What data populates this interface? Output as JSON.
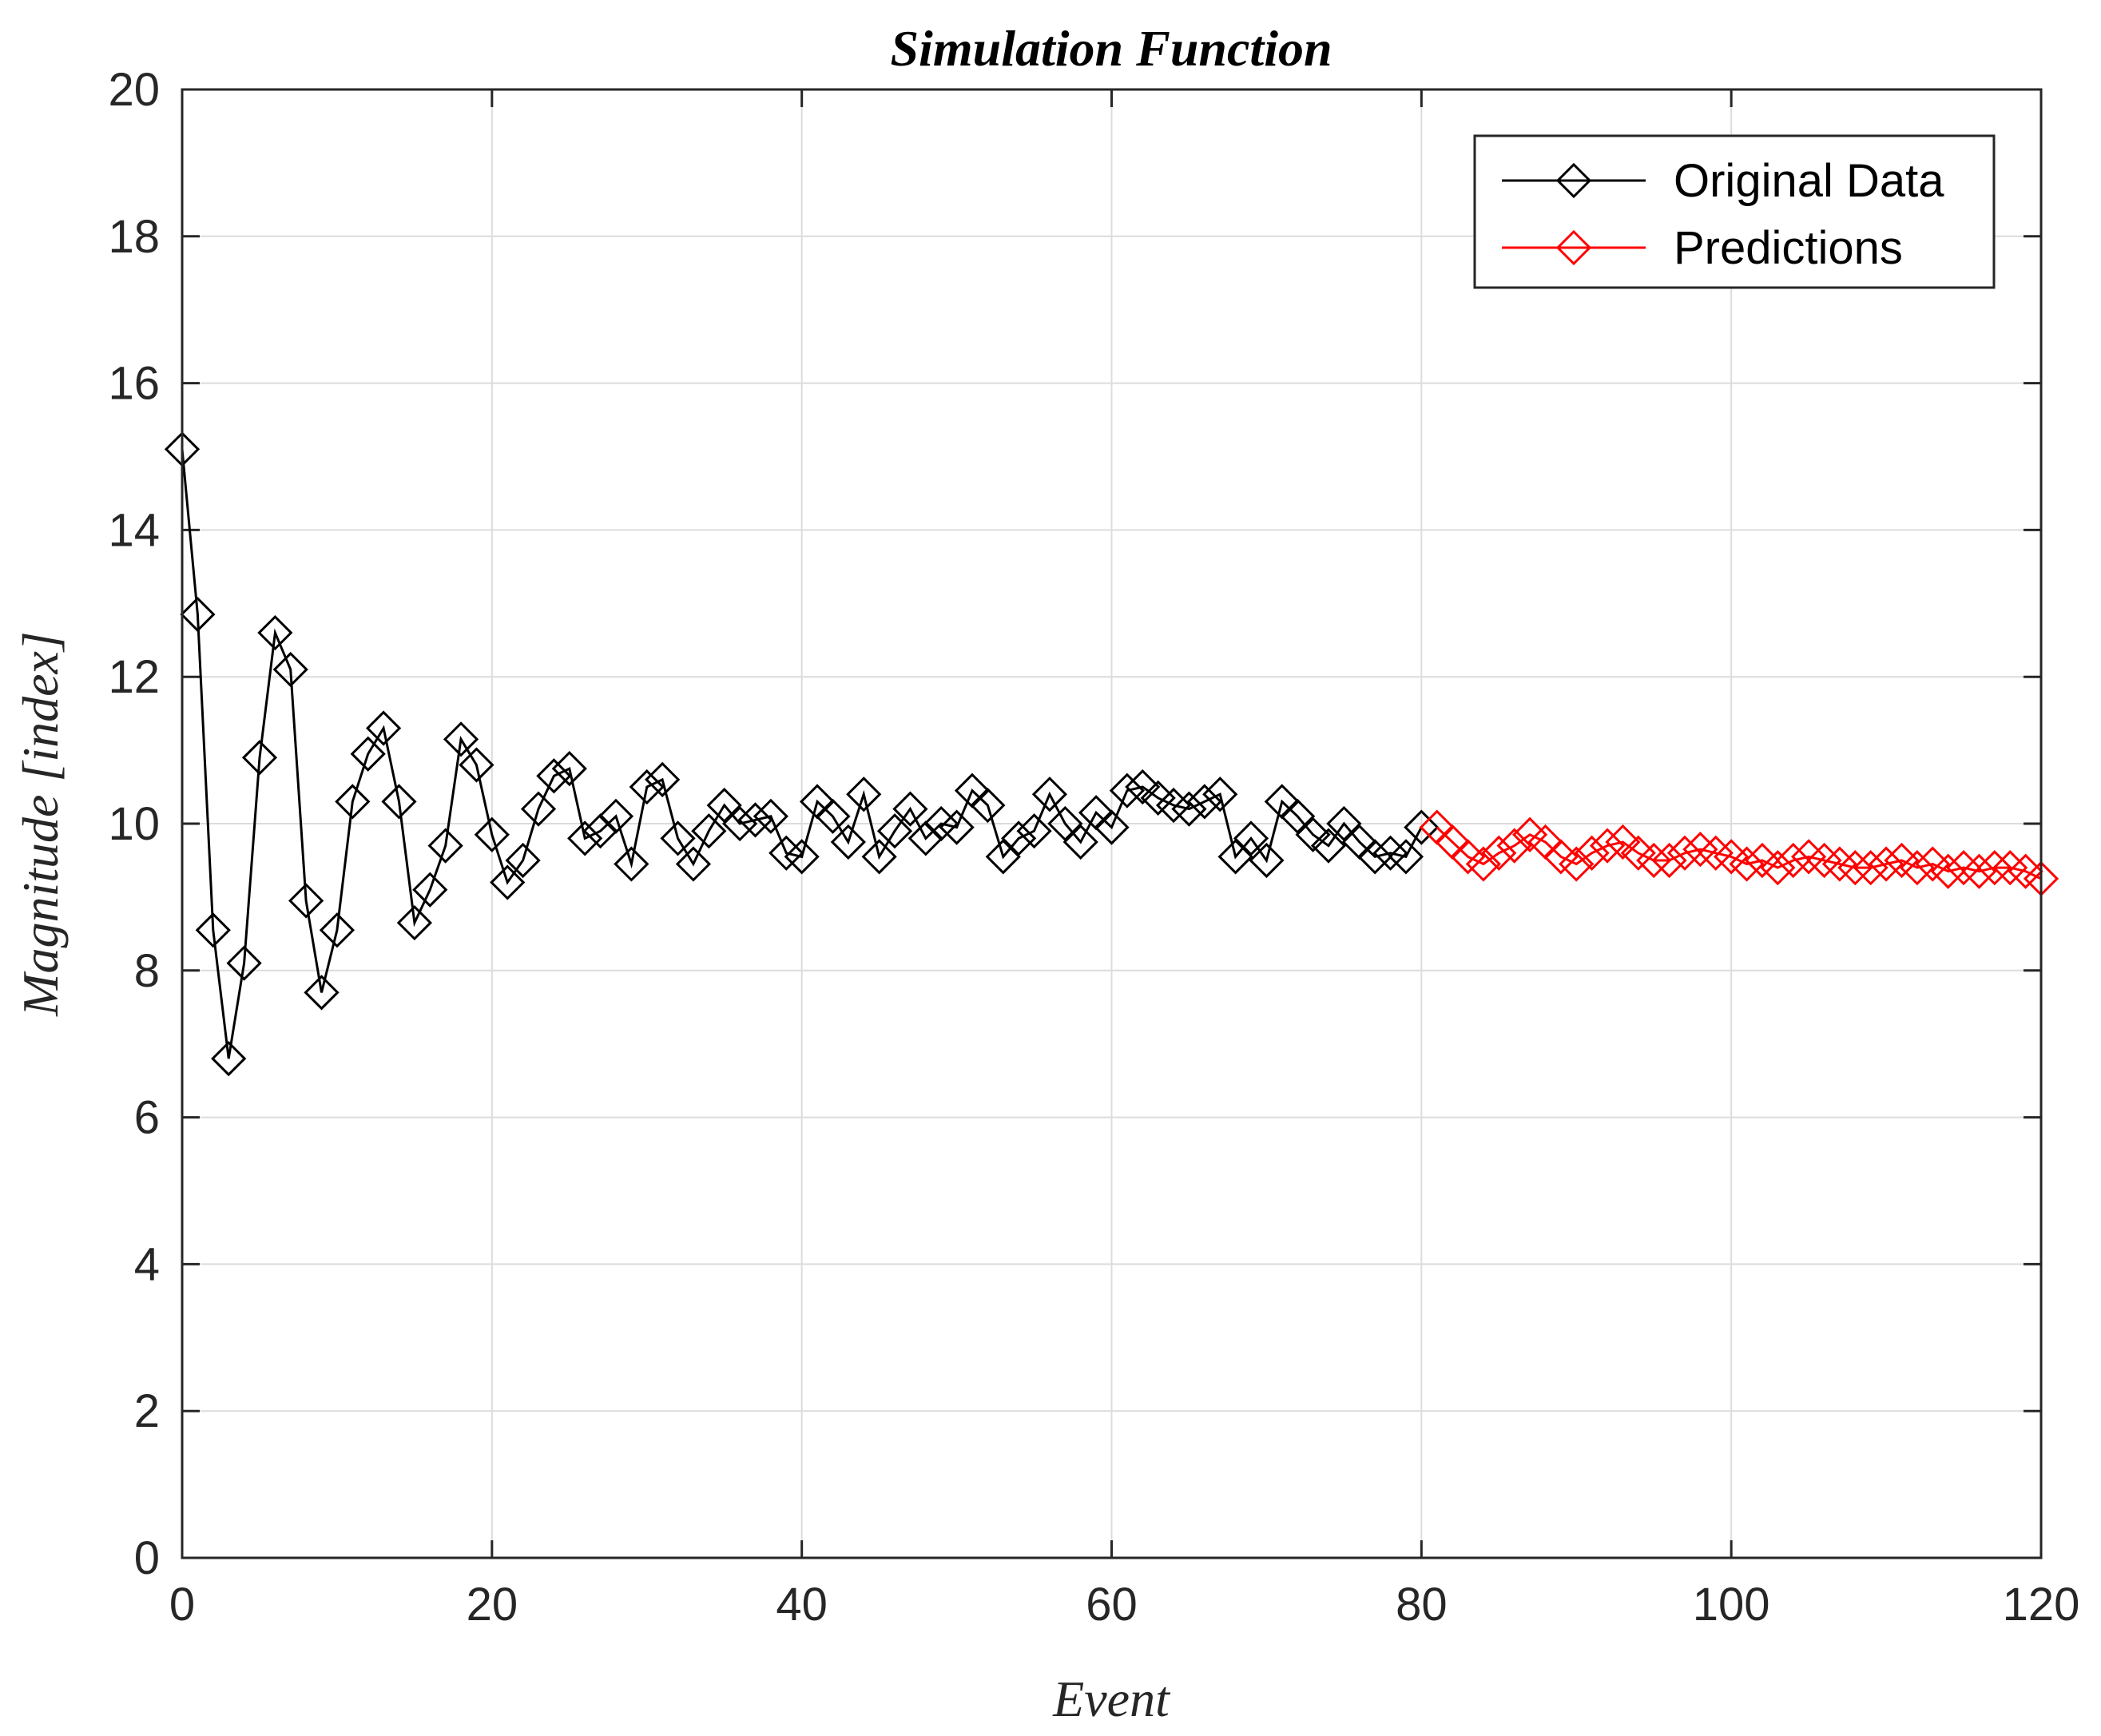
{
  "chart_data": {
    "type": "line",
    "title": "Simulation Function",
    "xlabel": "Event",
    "ylabel": "Magnitude [index]",
    "xlim": [
      0,
      120
    ],
    "ylim": [
      0,
      20
    ],
    "xticks": [
      0,
      20,
      40,
      60,
      80,
      100,
      120
    ],
    "yticks": [
      0,
      2,
      4,
      6,
      8,
      10,
      12,
      14,
      16,
      18,
      20
    ],
    "grid": true,
    "legend_position": "top-right",
    "series": [
      {
        "name": "Original Data",
        "color": "#000000",
        "marker": "diamond",
        "x": [
          0,
          1,
          2,
          3,
          4,
          5,
          6,
          7,
          8,
          9,
          10,
          11,
          12,
          13,
          14,
          15,
          16,
          17,
          18,
          19,
          20,
          21,
          22,
          23,
          24,
          25,
          26,
          27,
          28,
          29,
          30,
          31,
          32,
          33,
          34,
          35,
          36,
          37,
          38,
          39,
          40,
          41,
          42,
          43,
          44,
          45,
          46,
          47,
          48,
          49,
          50,
          51,
          52,
          53,
          54,
          55,
          56,
          57,
          58,
          59,
          60,
          61,
          62,
          63,
          64,
          65,
          66,
          67,
          68,
          69,
          70,
          71,
          72,
          73,
          74,
          75,
          76,
          77,
          78,
          79,
          80
        ],
        "values": [
          15.1,
          12.85,
          8.55,
          6.8,
          8.1,
          10.9,
          12.6,
          12.1,
          8.95,
          7.7,
          8.55,
          10.3,
          10.95,
          11.3,
          10.3,
          8.65,
          9.1,
          9.7,
          11.15,
          10.8,
          9.85,
          9.2,
          9.5,
          10.2,
          10.65,
          10.75,
          9.8,
          9.9,
          10.1,
          9.45,
          10.5,
          10.6,
          9.8,
          9.45,
          9.9,
          10.25,
          10.0,
          10.05,
          10.1,
          9.6,
          9.55,
          10.3,
          10.1,
          9.75,
          10.4,
          9.55,
          9.9,
          10.2,
          9.8,
          10.0,
          9.95,
          10.45,
          10.25,
          9.55,
          9.8,
          9.9,
          10.4,
          10.0,
          9.75,
          10.15,
          9.95,
          10.45,
          10.5,
          10.35,
          10.25,
          10.2,
          10.3,
          10.4,
          9.55,
          9.8,
          9.5,
          10.3,
          10.1,
          9.85,
          9.7,
          10.0,
          9.75,
          9.55,
          9.6,
          9.55,
          9.95
        ]
      },
      {
        "name": "Predictions",
        "color": "#ff0000",
        "marker": "diamond",
        "x": [
          81,
          82,
          83,
          84,
          85,
          86,
          87,
          88,
          89,
          90,
          91,
          92,
          93,
          94,
          95,
          96,
          97,
          98,
          99,
          100,
          101,
          102,
          103,
          104,
          105,
          106,
          107,
          108,
          109,
          110,
          111,
          112,
          113,
          114,
          115,
          116,
          117,
          118,
          119,
          120
        ],
        "values": [
          9.95,
          9.75,
          9.55,
          9.45,
          9.6,
          9.7,
          9.85,
          9.75,
          9.55,
          9.45,
          9.6,
          9.7,
          9.75,
          9.6,
          9.5,
          9.5,
          9.6,
          9.65,
          9.6,
          9.55,
          9.45,
          9.5,
          9.4,
          9.5,
          9.55,
          9.5,
          9.45,
          9.4,
          9.4,
          9.45,
          9.5,
          9.4,
          9.45,
          9.35,
          9.4,
          9.35,
          9.4,
          9.4,
          9.35,
          9.25
        ]
      }
    ]
  }
}
